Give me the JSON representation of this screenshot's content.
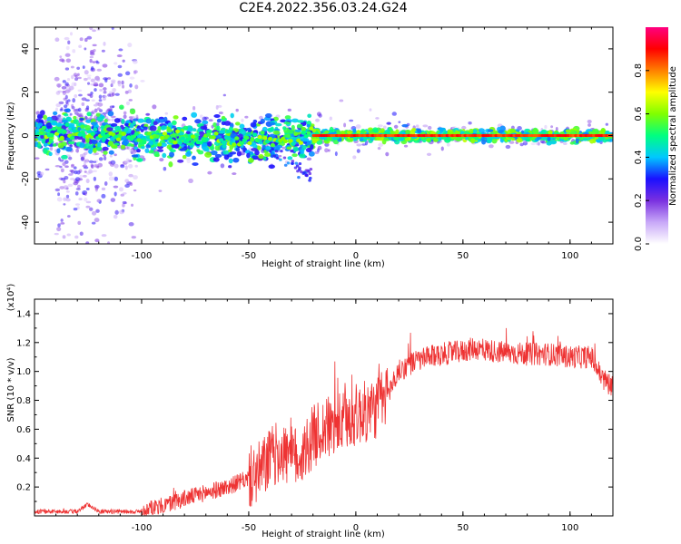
{
  "title": "C2E4.2022.356.03.24.G24",
  "chart_data": [
    {
      "type": "heatmap",
      "xlabel": "Height of straight line (km)",
      "ylabel": "Frequency (Hz)",
      "xlim": [
        -150,
        120
      ],
      "ylim": [
        -50,
        50
      ],
      "x_ticks": [
        -100,
        -50,
        0,
        50,
        100
      ],
      "y_ticks": [
        -40,
        -20,
        0,
        20,
        40
      ],
      "colorbar": {
        "label": "Normalized spectral amplitude",
        "range": [
          0.0,
          1.0
        ],
        "ticks": [
          0.0,
          0.2,
          0.4,
          0.6,
          0.8
        ],
        "tick_labels": [
          "0.0",
          "0.2",
          "0.4",
          "0.6",
          "0.8"
        ],
        "colors": [
          "#ffffff",
          "#c8a8f8",
          "#7a30e0",
          "#1a10ff",
          "#00c8ff",
          "#00ff80",
          "#80ff00",
          "#ffff00",
          "#ff8000",
          "#ff0000",
          "#ff0080"
        ]
      },
      "grid": false,
      "description_points": {
        "centerline_x": [
          -150,
          -120,
          -100,
          -80,
          -60,
          -45,
          -35,
          -25,
          -20,
          -10,
          0,
          20,
          50,
          80,
          100,
          120
        ],
        "centerline_freq": [
          2,
          1,
          0,
          -1,
          -2,
          -3,
          -2,
          -1,
          0,
          0,
          0,
          0,
          0,
          0,
          0,
          0
        ]
      }
    },
    {
      "type": "line",
      "xlabel": "Height of straight line (km)",
      "ylabel": "SNR (10 * v/v)",
      "scale_label": "(x10⁴)",
      "xlim": [
        -150,
        120
      ],
      "ylim": [
        0,
        1.5
      ],
      "x_ticks": [
        -100,
        -50,
        0,
        50,
        100
      ],
      "y_ticks": [
        0.2,
        0.4,
        0.6,
        0.8,
        1.0,
        1.2,
        1.4
      ],
      "y_tick_labels": [
        "0.2",
        "0.4",
        "0.6",
        "0.8",
        "1.0",
        "1.2",
        "1.4"
      ],
      "color": "#ee3333",
      "grid": false,
      "series": [
        {
          "x": [
            -150,
            -130,
            -125,
            -120,
            -100,
            -90,
            -80,
            -70,
            -60,
            -50,
            -45,
            -40,
            -35,
            -30,
            -25,
            -20,
            -15,
            -10,
            -5,
            0,
            5,
            10,
            15,
            20,
            25,
            30,
            40,
            50,
            55,
            60,
            70,
            80,
            90,
            100,
            110,
            115,
            120
          ],
          "y": [
            0.03,
            0.03,
            0.08,
            0.03,
            0.03,
            0.07,
            0.12,
            0.16,
            0.2,
            0.26,
            0.3,
            0.4,
            0.45,
            0.4,
            0.42,
            0.55,
            0.6,
            0.62,
            0.65,
            0.7,
            0.72,
            0.75,
            0.85,
            1.0,
            1.05,
            1.08,
            1.12,
            1.14,
            1.16,
            1.15,
            1.13,
            1.12,
            1.12,
            1.1,
            1.1,
            0.95,
            0.9
          ]
        }
      ]
    }
  ]
}
